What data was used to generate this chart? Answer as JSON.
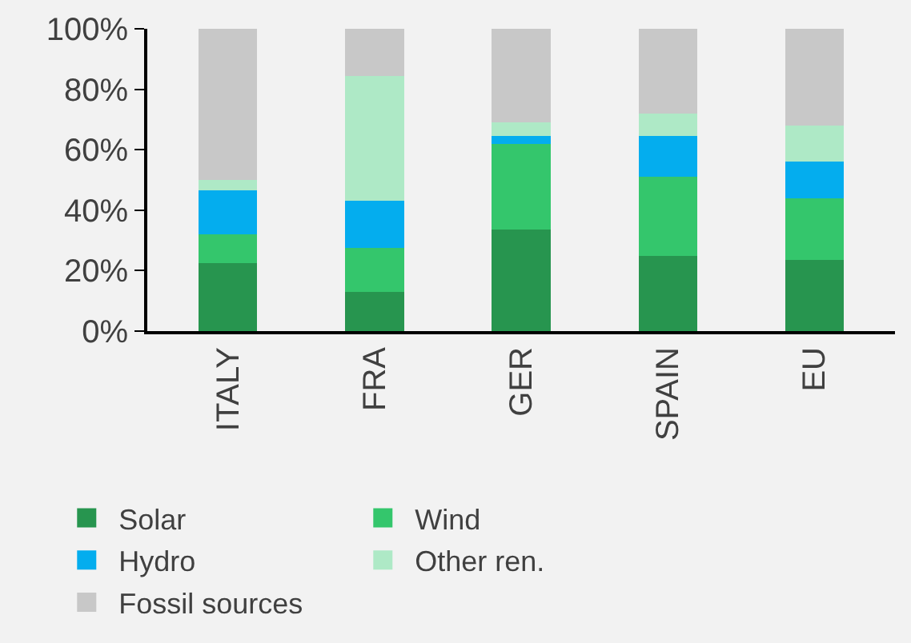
{
  "chart_data": {
    "type": "bar",
    "stacked": true,
    "categories": [
      "ITALY",
      "FRA",
      "GER",
      "SPAIN",
      "EU"
    ],
    "series": [
      {
        "name": "Solar",
        "color": "#27954f",
        "values": [
          22.5,
          13,
          33.5,
          25,
          23.5
        ]
      },
      {
        "name": "Wind",
        "color": "#34c66c",
        "values": [
          9.5,
          14.5,
          28.5,
          26,
          20.5
        ]
      },
      {
        "name": "Hydro",
        "color": "#04adee",
        "values": [
          14.5,
          15.5,
          2.5,
          13.5,
          12
        ]
      },
      {
        "name": "Other ren.",
        "color": "#aee9c6",
        "values": [
          3.5,
          41.5,
          4.5,
          7.5,
          12
        ]
      },
      {
        "name": "Fossil sources",
        "color": "#c8c8c8",
        "values": [
          50,
          15.5,
          31,
          28,
          32
        ]
      }
    ],
    "ylim": [
      0,
      100
    ],
    "yticks": [
      {
        "value": 0,
        "label": "0%"
      },
      {
        "value": 20,
        "label": "20%"
      },
      {
        "value": 40,
        "label": "40%"
      },
      {
        "value": 60,
        "label": "60%"
      },
      {
        "value": 80,
        "label": "80%"
      },
      {
        "value": 100,
        "label": "100%"
      }
    ],
    "grid": false,
    "legend": "bottom"
  }
}
